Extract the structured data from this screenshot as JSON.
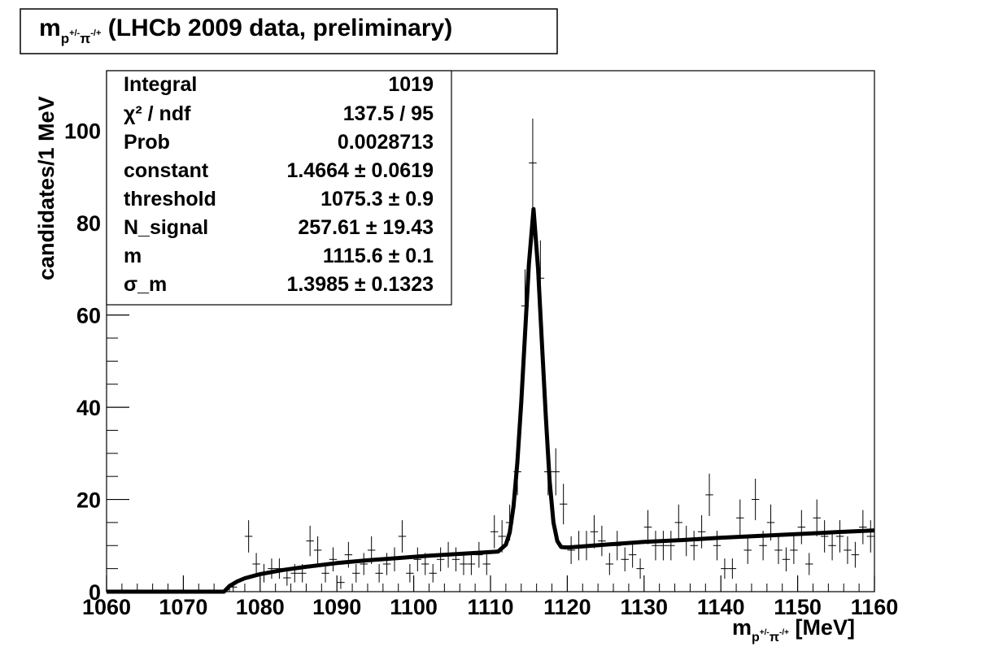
{
  "title": {
    "main": "m",
    "sub": "p",
    "sup1": "+/-",
    "pi": "π",
    "sup2": "-/+",
    "rest": " (LHCb 2009 data, preliminary)"
  },
  "xlabel": {
    "main": "m",
    "sub": "p",
    "sup1": "+/-",
    "pi": "π",
    "sup2": "-/+",
    "rest": " [MeV]"
  },
  "ylabel": "candidates/1 MeV",
  "stats": [
    {
      "label": "Integral",
      "value": "1019"
    },
    {
      "label": "χ² / ndf",
      "value": "137.5 / 95"
    },
    {
      "label": "Prob",
      "value": "0.0028713"
    },
    {
      "label": "constant",
      "value": "1.4664 ± 0.0619"
    },
    {
      "label": "threshold",
      "value": "1075.3 ± 0.9"
    },
    {
      "label": "N_signal",
      "value": "257.61 ± 19.43"
    },
    {
      "label": "m",
      "value": "1115.6 ± 0.1"
    },
    {
      "label": "σ_m",
      "value": "1.3985 ± 0.1323"
    }
  ],
  "chart_data": {
    "type": "scatter",
    "title": "m_{p+/-π-/+} (LHCb 2009 data, preliminary)",
    "xlabel": "m_{p+/-π-/+} [MeV]",
    "ylabel": "candidates/1 MeV",
    "xlim": [
      1060,
      1160
    ],
    "ylim": [
      0,
      113
    ],
    "x_ticks": [
      1060,
      1070,
      1080,
      1090,
      1100,
      1110,
      1120,
      1130,
      1140,
      1150,
      1160
    ],
    "y_ticks": [
      0,
      20,
      40,
      60,
      80,
      100
    ],
    "grid": false,
    "legend": "stats box top-left",
    "series": [
      {
        "type": "errorbar",
        "x": [
          1076.5,
          1078.5,
          1079.5,
          1080.5,
          1081.5,
          1082.5,
          1083.5,
          1084.5,
          1085.5,
          1086.5,
          1087.5,
          1088.5,
          1089.5,
          1090.5,
          1091.5,
          1092.5,
          1093.5,
          1094.5,
          1095.5,
          1096.5,
          1097.5,
          1098.5,
          1099.5,
          1100.5,
          1101.5,
          1102.5,
          1103.5,
          1104.5,
          1105.5,
          1106.5,
          1107.5,
          1108.5,
          1109.5,
          1110.5,
          1111.5,
          1112.5,
          1113.5,
          1114.5,
          1115.5,
          1116.5,
          1117.5,
          1118.5,
          1119.5,
          1120.5,
          1121.5,
          1122.5,
          1123.5,
          1124.5,
          1125.5,
          1126.5,
          1127.5,
          1128.5,
          1129.5,
          1130.5,
          1131.5,
          1132.5,
          1133.5,
          1134.5,
          1135.5,
          1136.5,
          1137.5,
          1138.5,
          1139.5,
          1140.5,
          1141.5,
          1142.5,
          1143.5,
          1144.5,
          1145.5,
          1146.5,
          1147.5,
          1148.5,
          1149.5,
          1150.5,
          1151.5,
          1152.5,
          1153.5,
          1154.5,
          1155.5,
          1156.5,
          1157.5,
          1158.5,
          1159.5
        ],
        "y": [
          1,
          12,
          6,
          4,
          5,
          5,
          3,
          4,
          4,
          11,
          9,
          4,
          7,
          2,
          8,
          4,
          6,
          9,
          4,
          6,
          7,
          12,
          4,
          7,
          6,
          4,
          7,
          8,
          7,
          6,
          6,
          8,
          6,
          13,
          12,
          15,
          26,
          62,
          93,
          68,
          26,
          26,
          19,
          9,
          10,
          10,
          13,
          11,
          6,
          10,
          7,
          8,
          5,
          14,
          10,
          10,
          10,
          15,
          11,
          10,
          13,
          21,
          10,
          5,
          5,
          16,
          9,
          20,
          10,
          15,
          9,
          7,
          9,
          14,
          6,
          16,
          12,
          10,
          12,
          9,
          8,
          14,
          12
        ],
        "err": [
          1,
          3.5,
          2.4,
          2,
          2.2,
          2.2,
          1.7,
          2,
          2,
          3.3,
          3,
          2,
          2.6,
          1.4,
          2.8,
          2,
          2.4,
          3,
          2,
          2.4,
          2.6,
          3.5,
          2,
          2.6,
          2.4,
          2,
          2.6,
          2.8,
          2.6,
          2.4,
          2.4,
          2.8,
          2.4,
          3.6,
          3.5,
          3.9,
          5.1,
          7.9,
          9.6,
          8.2,
          5.1,
          5.1,
          4.4,
          3,
          3.2,
          3.2,
          3.6,
          3.3,
          2.4,
          3.2,
          2.6,
          2.8,
          2.2,
          3.7,
          3.2,
          3.2,
          3.2,
          3.9,
          3.3,
          3.2,
          3.6,
          4.6,
          3.2,
          2.2,
          2.2,
          4,
          3,
          4.5,
          3.2,
          3.9,
          3,
          2.6,
          3,
          3.7,
          2.4,
          4,
          3.5,
          3.2,
          3.5,
          3,
          2.8,
          3.7,
          3.5
        ]
      },
      {
        "type": "fit-line",
        "x": [
          1060,
          1075.3,
          1076,
          1077,
          1078,
          1080,
          1083,
          1086,
          1090,
          1094,
          1098,
          1102,
          1106,
          1108,
          1110,
          1111,
          1112,
          1112.5,
          1113,
          1113.5,
          1114,
          1114.5,
          1115,
          1115.6,
          1116.2,
          1116.7,
          1117.2,
          1117.7,
          1118.2,
          1118.7,
          1119.2,
          1119.7,
          1120.2,
          1121,
          1125,
          1130,
          1135,
          1140,
          1145,
          1150,
          1155,
          1160
        ],
        "y": [
          0,
          0,
          1.2,
          2.2,
          2.9,
          3.8,
          4.7,
          5.4,
          6.2,
          6.8,
          7.3,
          7.8,
          8.2,
          8.4,
          8.6,
          8.7,
          10.2,
          12.8,
          18.5,
          28,
          41,
          56,
          71,
          83,
          70,
          54,
          38,
          24,
          15,
          11,
          9.7,
          9.6,
          9.6,
          9.7,
          10.2,
          10.8,
          11.2,
          11.7,
          12.1,
          12.5,
          12.9,
          13.3
        ]
      }
    ]
  }
}
